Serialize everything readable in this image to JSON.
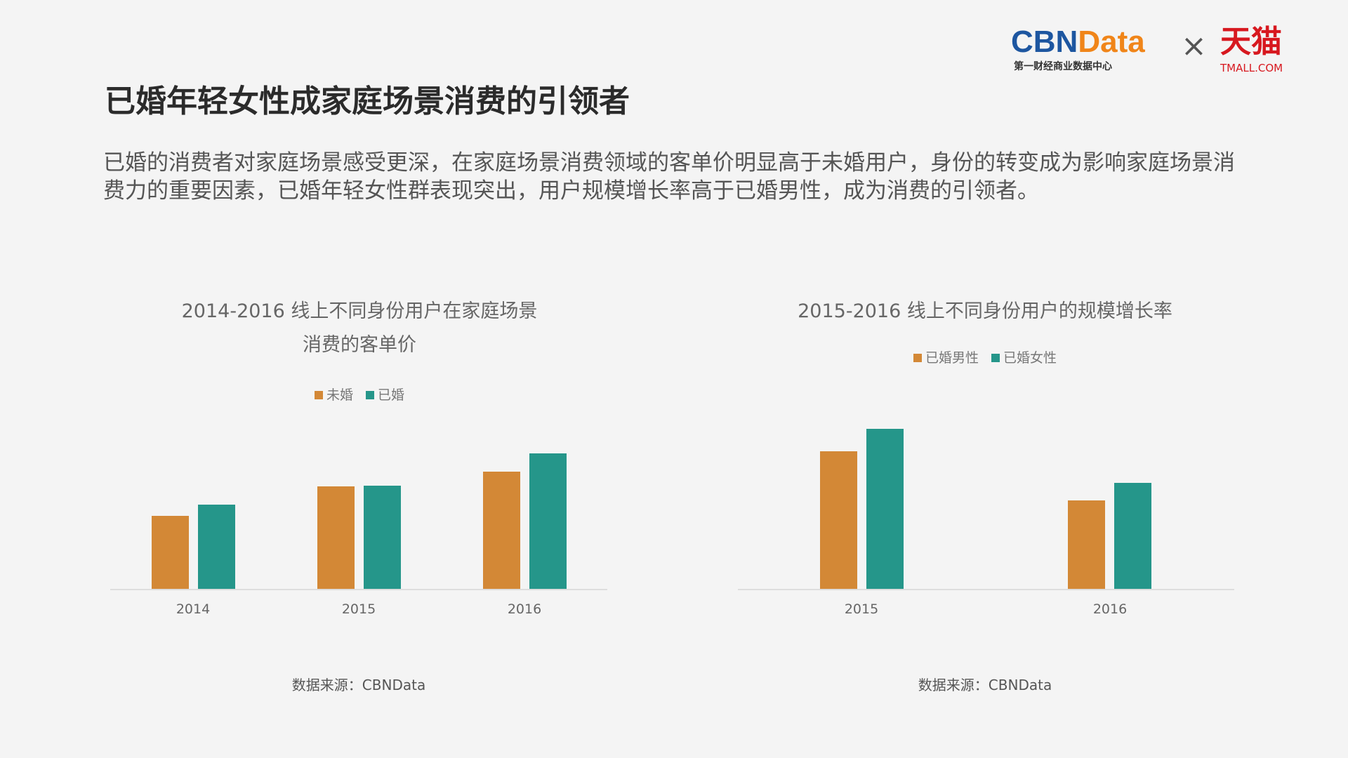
{
  "header": {
    "title": "已婚年轻女性成家庭场景消费的引领者",
    "paragraph": "已婚的消费者对家庭场景感受更深，在家庭场景消费领域的客单价明显高于未婚用户，身份的转变成为影响家庭场景消费力的重要因素，已婚年轻女性群表现突出，用户规模增长率高于已婚男性，成为消费的引领者。"
  },
  "logo": {
    "cbn": "CBN",
    "data": "Data",
    "cbn_sub": "第一财经商业数据中心",
    "times": "×",
    "tmall": "天猫",
    "tmall_sub": "TMALL.COM"
  },
  "colors": {
    "orange": "#D38836",
    "teal": "#25968A"
  },
  "chart_data": [
    {
      "type": "bar",
      "title_line1": "2014-2016 线上不同身份用户在家庭场景",
      "title_line2": "消费的客单价",
      "categories": [
        "2014",
        "2015",
        "2016"
      ],
      "series": [
        {
          "name": "未婚",
          "values": [
            85,
            119,
            136
          ]
        },
        {
          "name": "已婚",
          "values": [
            98,
            120,
            158
          ]
        }
      ],
      "source": "数据来源：CBNData",
      "legend": "top"
    },
    {
      "type": "bar",
      "title_line1": "2015-2016 线上不同身份用户的规模增长率",
      "categories": [
        "2015",
        "2016"
      ],
      "series": [
        {
          "name": "已婚男性",
          "values": [
            160,
            103
          ]
        },
        {
          "name": "已婚女性",
          "values": [
            186,
            123
          ]
        }
      ],
      "source": "数据来源：CBNData",
      "legend": "top"
    }
  ]
}
